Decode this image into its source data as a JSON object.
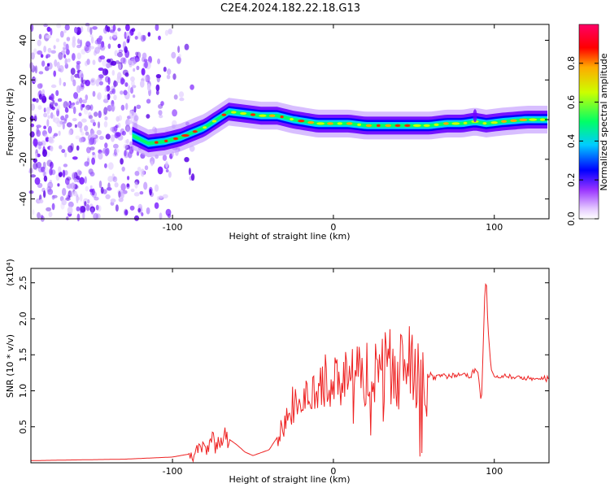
{
  "title": "C2E4.2024.182.22.18.G13",
  "chart_data": [
    {
      "type": "heatmap",
      "xlabel": "Height of straight line (km)",
      "ylabel": "Frequency (Hz)",
      "xlim": [
        -188,
        134
      ],
      "ylim": [
        -50,
        48
      ],
      "x_ticks": [
        -100,
        0,
        100
      ],
      "y_ticks": [
        -40,
        -20,
        0,
        20,
        40
      ],
      "colorbar": {
        "label": "Normalized spectral amplitude",
        "range": [
          0,
          1
        ],
        "ticks": [
          0.0,
          0.2,
          0.4,
          0.6,
          0.8
        ],
        "colors": [
          "#ffffff",
          "#cc99ff",
          "#6600ff",
          "#0000ff",
          "#00ccff",
          "#00ff66",
          "#ccff00",
          "#ffaa00",
          "#ff0000",
          "#ff0066"
        ]
      },
      "ridge": {
        "x": [
          -125,
          -115,
          -105,
          -95,
          -80,
          -65,
          -55,
          -45,
          -35,
          -25,
          -10,
          0,
          10,
          20,
          30,
          40,
          50,
          60,
          70,
          80,
          88,
          95,
          105,
          120,
          134
        ],
        "frequency": [
          -8,
          -12,
          -11,
          -9,
          -4,
          4,
          3,
          2,
          2,
          0,
          -2,
          -2,
          -2,
          -3,
          -3,
          -3,
          -3,
          -3,
          -2,
          -2,
          -1,
          -2,
          -1,
          0,
          0
        ]
      },
      "noise_region_x": [
        -188,
        -95
      ]
    },
    {
      "type": "line",
      "xlabel": "Height of straight line (km)",
      "ylabel": "SNR (10 * v/v)",
      "multiplier_label": "(x10⁴)",
      "xlim": [
        -188,
        134
      ],
      "ylim": [
        0,
        2.7
      ],
      "x_ticks": [
        -100,
        0,
        100
      ],
      "y_ticks": [
        0.5,
        1.0,
        1.5,
        2.0,
        2.5
      ],
      "y_tick_labels": [
        "0.5",
        "1.0",
        "1.5",
        "2.0",
        "2.5"
      ],
      "color": "#ee2222",
      "series": [
        {
          "x": [
            -188,
            -160,
            -130,
            -100,
            -90,
            -80,
            -70,
            -65,
            -60,
            -55,
            -50,
            -40,
            -35,
            -30,
            -25,
            -20,
            -15,
            -10,
            -5,
            0,
            5,
            10,
            15,
            20,
            25,
            30,
            35,
            40,
            45,
            50,
            55,
            60,
            70,
            80,
            85,
            88,
            90,
            92,
            94,
            95,
            96,
            98,
            100,
            110,
            120,
            134
          ],
          "y": [
            0.03,
            0.04,
            0.05,
            0.08,
            0.12,
            0.18,
            0.28,
            0.33,
            0.25,
            0.15,
            0.1,
            0.18,
            0.35,
            0.55,
            0.75,
            0.8,
            0.95,
            1.0,
            1.05,
            1.1,
            1.15,
            1.2,
            1.2,
            1.25,
            1.28,
            1.3,
            1.3,
            1.32,
            1.33,
            1.3,
            1.25,
            1.22,
            1.2,
            1.21,
            1.2,
            1.3,
            1.25,
            0.8,
            2.3,
            2.6,
            1.9,
            1.3,
            1.2,
            1.19,
            1.18,
            1.17
          ]
        }
      ]
    }
  ]
}
